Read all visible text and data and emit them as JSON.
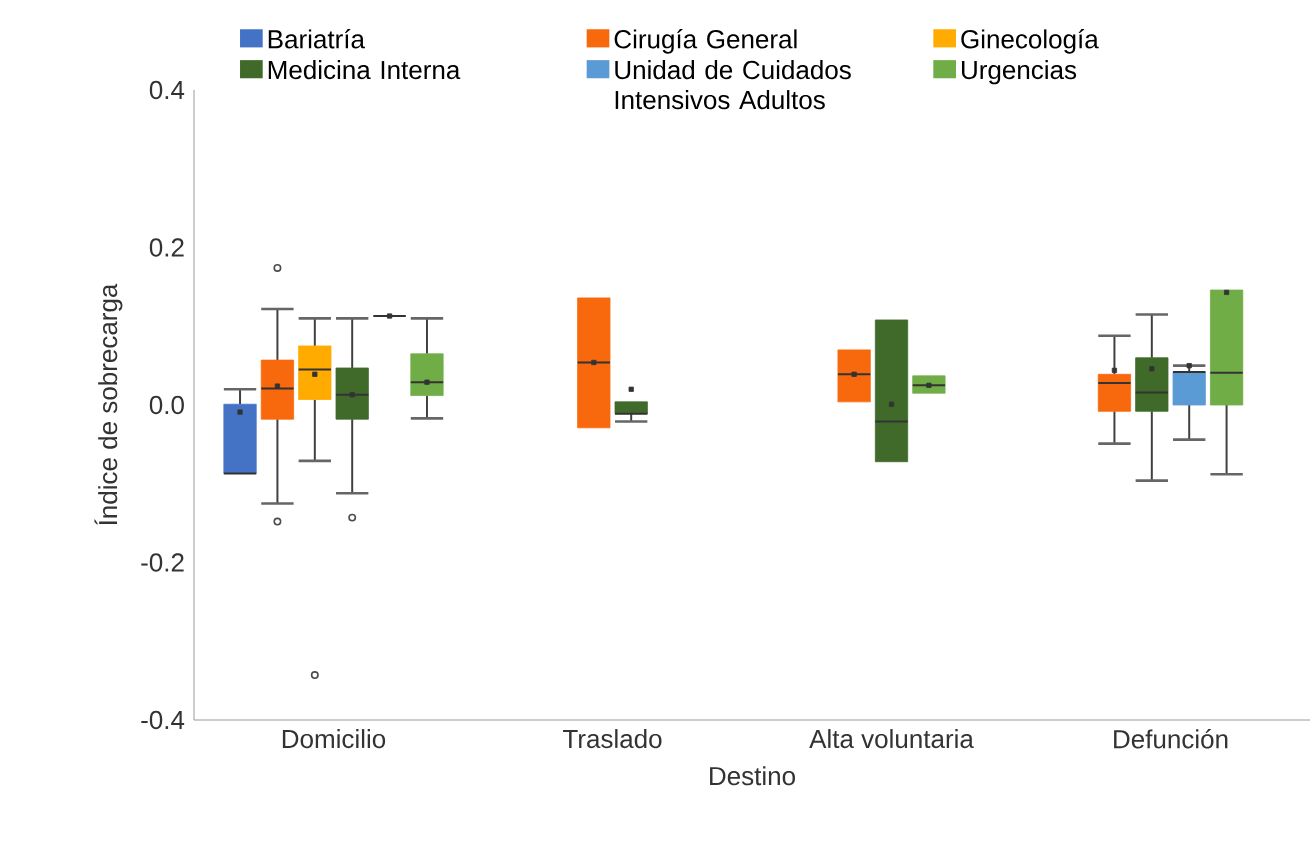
{
  "chart_data": {
    "type": "box",
    "xlabel": "Destino",
    "ylabel": "Índice de sobrecarga",
    "categories": [
      "Domicilio",
      "Traslado",
      "Alta voluntaria",
      "Defunción"
    ],
    "ylim": [
      -0.4,
      0.4
    ],
    "yticks": [
      -0.4,
      -0.2,
      {
        "value": 0,
        "label": "0.0"
      },
      0.2,
      0.4
    ],
    "legend": "top",
    "grid": false,
    "series": [
      {
        "name": "Bariatría",
        "color": "#4472c4",
        "boxes": [
          {
            "low": -0.087,
            "q1": -0.087,
            "median": -0.087,
            "q3": 0.001,
            "high": 0.02,
            "mean": -0.009
          },
          null,
          null,
          null
        ]
      },
      {
        "name": "Cirugía General",
        "color": "#f8690e",
        "boxes": [
          {
            "low": -0.125,
            "q1": -0.018,
            "median": 0.021,
            "q3": 0.057,
            "high": 0.122,
            "mean": 0.024,
            "outliers": [
              0.174,
              -0.148
            ]
          },
          {
            "low": -0.029,
            "q1": -0.029,
            "median": 0.054,
            "q3": 0.136,
            "high": 0.136,
            "mean": 0.054
          },
          {
            "low": 0.004,
            "q1": 0.004,
            "median": 0.039,
            "q3": 0.07,
            "high": 0.07,
            "mean": 0.039
          },
          {
            "low": -0.049,
            "q1": -0.008,
            "median": 0.028,
            "q3": 0.039,
            "high": 0.088,
            "mean": 0.044
          }
        ]
      },
      {
        "name": "Ginecología",
        "color": "#ffab00",
        "boxes": [
          {
            "low": -0.071,
            "q1": 0.007,
            "median": 0.045,
            "q3": 0.075,
            "high": 0.11,
            "mean": 0.039,
            "outliers": [
              -0.343
            ]
          },
          null,
          null,
          null
        ]
      },
      {
        "name": "Medicina Interna",
        "color": "#3f6a2a",
        "boxes": [
          {
            "low": -0.112,
            "q1": -0.018,
            "median": 0.013,
            "q3": 0.047,
            "high": 0.11,
            "mean": 0.013,
            "outliers": [
              -0.143
            ]
          },
          {
            "low": -0.021,
            "q1": -0.011,
            "median": -0.011,
            "q3": 0.004,
            "high": 0.004,
            "mean": 0.02
          },
          {
            "low": -0.072,
            "q1": -0.072,
            "median": -0.021,
            "q3": 0.108,
            "high": 0.108,
            "mean": 0.001
          },
          {
            "low": -0.096,
            "q1": -0.008,
            "median": 0.016,
            "q3": 0.06,
            "high": 0.115,
            "mean": 0.046
          }
        ]
      },
      {
        "name": "Unidad de Cuidados Intensivos Adultos",
        "color": "#5b9bd5",
        "boxes": [
          {
            "low": 0.113,
            "q1": 0.113,
            "median": 0.113,
            "q3": 0.113,
            "high": 0.113,
            "mean": 0.113
          },
          null,
          null,
          {
            "low": -0.044,
            "q1": 0.0,
            "median": 0.042,
            "q3": 0.042,
            "high": 0.05,
            "mean": 0.05
          }
        ]
      },
      {
        "name": "Urgencias",
        "color": "#70ad47",
        "boxes": [
          {
            "low": -0.017,
            "q1": 0.012,
            "median": 0.029,
            "q3": 0.065,
            "high": 0.11,
            "mean": 0.029
          },
          null,
          {
            "low": 0.015,
            "q1": 0.015,
            "median": 0.025,
            "q3": 0.037,
            "high": 0.037,
            "mean": 0.025
          },
          {
            "low": -0.088,
            "q1": 0.0,
            "median": 0.041,
            "q3": 0.146,
            "high": 0.146,
            "mean": 0.143
          }
        ]
      }
    ]
  }
}
